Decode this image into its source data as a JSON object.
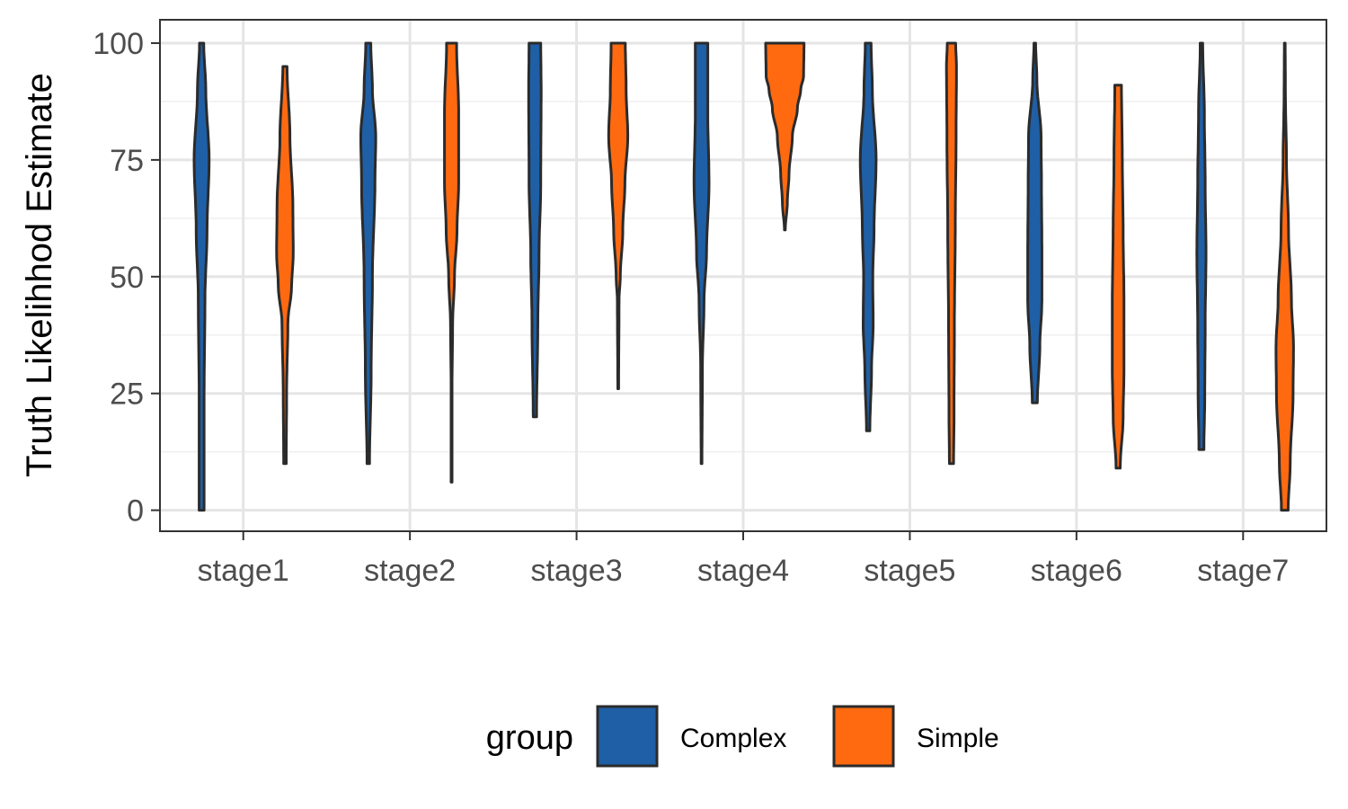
{
  "chart_data": {
    "type": "violin",
    "title": "",
    "xlabel": "",
    "ylabel": "Truth Likelihhod Estimate",
    "ylim": [
      -4.5,
      105
    ],
    "yticks": [
      0,
      25,
      50,
      75,
      100
    ],
    "ytick_labels": [
      "0",
      "25",
      "50",
      "75",
      "100"
    ],
    "categories": [
      "stage1",
      "stage2",
      "stage3",
      "stage4",
      "stage5",
      "stage6",
      "stage7"
    ],
    "grid": true,
    "legend": {
      "title": "group",
      "position": "bottom"
    },
    "series": [
      {
        "name": "Complex",
        "color": "#1F5FA6",
        "violins": [
          {
            "min": 0,
            "max": 100,
            "profile": [
              [
                0,
                0.06
              ],
              [
                25,
                0.06
              ],
              [
                45,
                0.08
              ],
              [
                60,
                0.13
              ],
              [
                75,
                0.18
              ],
              [
                90,
                0.1
              ],
              [
                100,
                0.05
              ]
            ]
          },
          {
            "min": 10,
            "max": 100,
            "profile": [
              [
                10,
                0.03
              ],
              [
                30,
                0.07
              ],
              [
                50,
                0.1
              ],
              [
                70,
                0.16
              ],
              [
                80,
                0.18
              ],
              [
                90,
                0.1
              ],
              [
                100,
                0.06
              ]
            ]
          },
          {
            "min": 20,
            "max": 100,
            "profile": [
              [
                20,
                0.04
              ],
              [
                40,
                0.07
              ],
              [
                55,
                0.1
              ],
              [
                70,
                0.14
              ],
              [
                90,
                0.15
              ],
              [
                100,
                0.14
              ]
            ]
          },
          {
            "min": 10,
            "max": 100,
            "profile": [
              [
                10,
                0.01
              ],
              [
                30,
                0.02
              ],
              [
                45,
                0.06
              ],
              [
                55,
                0.12
              ],
              [
                70,
                0.18
              ],
              [
                85,
                0.15
              ],
              [
                100,
                0.15
              ]
            ]
          },
          {
            "min": 17,
            "max": 100,
            "profile": [
              [
                17,
                0.04
              ],
              [
                30,
                0.08
              ],
              [
                40,
                0.12
              ],
              [
                50,
                0.11
              ],
              [
                60,
                0.14
              ],
              [
                75,
                0.19
              ],
              [
                90,
                0.1
              ],
              [
                100,
                0.07
              ]
            ]
          },
          {
            "min": 23,
            "max": 100,
            "profile": [
              [
                23,
                0.06
              ],
              [
                35,
                0.12
              ],
              [
                45,
                0.17
              ],
              [
                55,
                0.17
              ],
              [
                70,
                0.16
              ],
              [
                80,
                0.15
              ],
              [
                92,
                0.05
              ],
              [
                100,
                0.02
              ]
            ]
          },
          {
            "min": 13,
            "max": 100,
            "profile": [
              [
                13,
                0.06
              ],
              [
                25,
                0.08
              ],
              [
                40,
                0.09
              ],
              [
                55,
                0.11
              ],
              [
                70,
                0.09
              ],
              [
                85,
                0.07
              ],
              [
                100,
                0.03
              ]
            ]
          }
        ]
      },
      {
        "name": "Simple",
        "color": "#FF6A10",
        "violins": [
          {
            "min": 10,
            "max": 95,
            "profile": [
              [
                10,
                0.03
              ],
              [
                25,
                0.04
              ],
              [
                40,
                0.07
              ],
              [
                48,
                0.16
              ],
              [
                55,
                0.2
              ],
              [
                65,
                0.19
              ],
              [
                80,
                0.12
              ],
              [
                95,
                0.05
              ]
            ]
          },
          {
            "min": 6,
            "max": 100,
            "profile": [
              [
                6,
                0.005
              ],
              [
                25,
                0.01
              ],
              [
                40,
                0.025
              ],
              [
                50,
                0.07
              ],
              [
                60,
                0.13
              ],
              [
                70,
                0.17
              ],
              [
                85,
                0.17
              ],
              [
                100,
                0.12
              ]
            ]
          },
          {
            "min": 26,
            "max": 100,
            "profile": [
              [
                26,
                0.01
              ],
              [
                45,
                0.02
              ],
              [
                50,
                0.05
              ],
              [
                60,
                0.11
              ],
              [
                70,
                0.16
              ],
              [
                80,
                0.23
              ],
              [
                90,
                0.19
              ],
              [
                100,
                0.17
              ]
            ]
          },
          {
            "min": 60,
            "max": 100,
            "profile": [
              [
                60,
                0.01
              ],
              [
                66,
                0.06
              ],
              [
                72,
                0.1
              ],
              [
                80,
                0.18
              ],
              [
                86,
                0.3
              ],
              [
                90,
                0.38
              ],
              [
                93,
                0.45
              ],
              [
                100,
                0.46
              ]
            ]
          },
          {
            "min": 10,
            "max": 100,
            "profile": [
              [
                10,
                0.05
              ],
              [
                20,
                0.06
              ],
              [
                40,
                0.07
              ],
              [
                60,
                0.09
              ],
              [
                80,
                0.11
              ],
              [
                95,
                0.12
              ],
              [
                100,
                0.1
              ]
            ]
          },
          {
            "min": 9,
            "max": 91,
            "profile": [
              [
                9,
                0.05
              ],
              [
                20,
                0.12
              ],
              [
                30,
                0.14
              ],
              [
                45,
                0.14
              ],
              [
                60,
                0.12
              ],
              [
                75,
                0.1
              ],
              [
                91,
                0.08
              ]
            ]
          },
          {
            "min": 0,
            "max": 100,
            "profile": [
              [
                0,
                0.08
              ],
              [
                10,
                0.13
              ],
              [
                25,
                0.2
              ],
              [
                35,
                0.21
              ],
              [
                45,
                0.16
              ],
              [
                60,
                0.09
              ],
              [
                75,
                0.04
              ],
              [
                90,
                0.015
              ],
              [
                100,
                0.01
              ]
            ]
          }
        ]
      }
    ]
  }
}
